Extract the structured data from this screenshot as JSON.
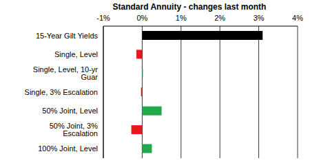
{
  "chart_data": {
    "type": "bar",
    "title": "Standard Annuity - changes last month",
    "orientation": "horizontal",
    "categories": [
      "15-Year Gilt Yields",
      "Single, Level",
      "Single, Level, 10-yr Guar",
      "Single, 3% Escalation",
      "50% Joint, Level",
      "50% Joint, 3% Escalation",
      "100% Joint, Level"
    ],
    "values": [
      3.1,
      -0.15,
      0.02,
      -0.03,
      0.5,
      -0.28,
      0.25
    ],
    "colors": [
      "#000000",
      "#e8191c",
      "#2ca86a",
      "#e8191c",
      "#21a84a",
      "#e8191c",
      "#21a84a"
    ],
    "xlim": [
      -1,
      4
    ],
    "xticks": [
      {
        "value": -1,
        "label": "-1%"
      },
      {
        "value": 0,
        "label": "0%"
      },
      {
        "value": 1,
        "label": "1%"
      },
      {
        "value": 2,
        "label": "2%"
      },
      {
        "value": 3,
        "label": "3%"
      },
      {
        "value": 4,
        "label": "4%"
      }
    ],
    "grid": true
  }
}
